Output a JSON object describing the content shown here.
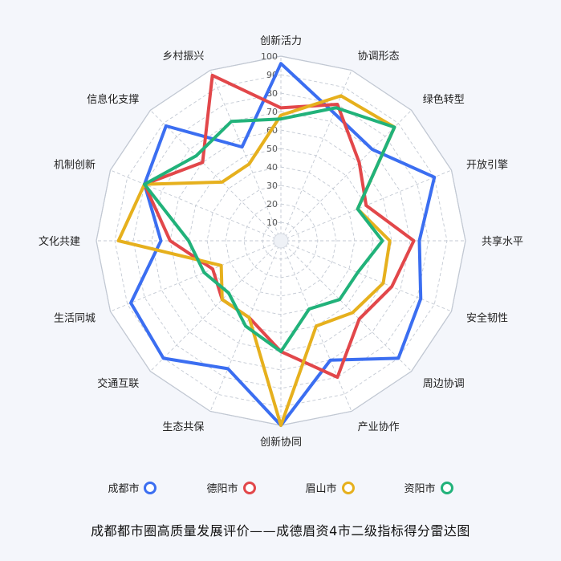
{
  "chart_data": {
    "type": "radar",
    "title": "成都都市圈高质量发展评价——成德眉资4市二级指标得分雷达图",
    "axes": [
      "创新活力",
      "协调形态",
      "绿色转型",
      "开放引擎",
      "共享水平",
      "安全韧性",
      "周边协调",
      "产业协作",
      "创新协同",
      "生态共保",
      "交通互联",
      "生活同城",
      "文化共建",
      "机制创新",
      "信息化支撑",
      "乡村振兴"
    ],
    "ticks": [
      10,
      20,
      30,
      40,
      50,
      60,
      70,
      80,
      90,
      100
    ],
    "range": [
      0,
      100
    ],
    "series": [
      {
        "name": "成都市",
        "color": "#3b6ef1",
        "values": [
          96,
          75,
          70,
          90,
          75,
          82,
          90,
          70,
          100,
          75,
          90,
          88,
          65,
          80,
          88,
          55
        ]
      },
      {
        "name": "德阳市",
        "color": "#e2474a",
        "values": [
          72,
          80,
          60,
          50,
          72,
          65,
          60,
          80,
          60,
          45,
          45,
          40,
          60,
          80,
          60,
          97
        ]
      },
      {
        "name": "眉山市",
        "color": "#e6b01d",
        "values": [
          68,
          85,
          87,
          45,
          59,
          60,
          55,
          50,
          100,
          45,
          45,
          35,
          88,
          80,
          45,
          45
        ]
      },
      {
        "name": "资阳市",
        "color": "#21b27a",
        "values": [
          66,
          78,
          87,
          45,
          55,
          45,
          45,
          40,
          60,
          50,
          40,
          45,
          50,
          80,
          65,
          70
        ]
      }
    ]
  }
}
